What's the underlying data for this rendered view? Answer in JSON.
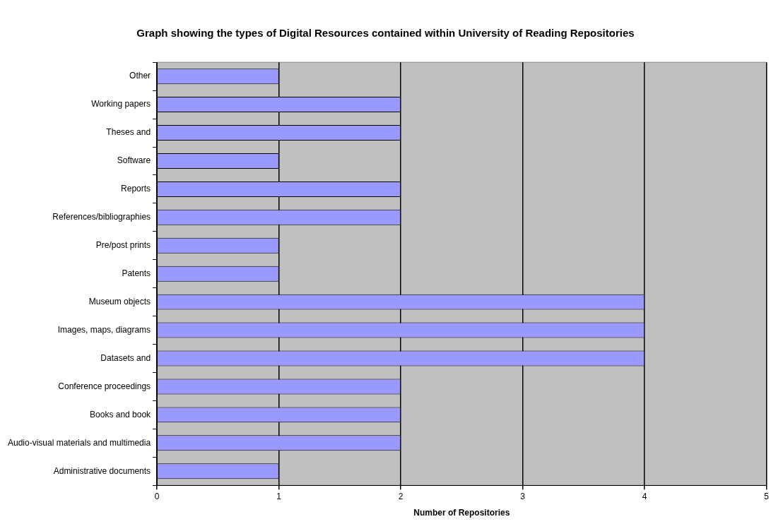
{
  "chart_data": {
    "type": "bar",
    "orientation": "horizontal",
    "title": "Graph showing the types of Digital Resources contained within University of Reading Repositories",
    "xlabel": "Number of Repositories",
    "categories": [
      "Other",
      "Working papers",
      "Theses and",
      "Software",
      "Reports",
      "References/bibliographies",
      "Pre/post prints",
      "Patents",
      "Museum objects",
      "Images, maps, diagrams",
      "Datasets and",
      "Conference proceedings",
      "Books and book",
      "Audio-visual materials and multimedia",
      "Administrative documents"
    ],
    "values": [
      1,
      2,
      2,
      1,
      2,
      2,
      1,
      1,
      4,
      4,
      4,
      2,
      2,
      2,
      1
    ],
    "color": "#9999ff",
    "xlim": [
      0,
      5
    ],
    "xticks": [
      0,
      1,
      2,
      3,
      4,
      5
    ],
    "grid": "x",
    "legend": false
  }
}
